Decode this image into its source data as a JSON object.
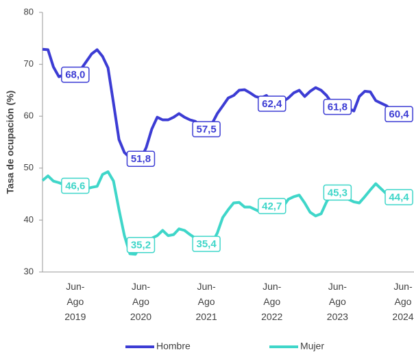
{
  "chart_data": {
    "type": "line",
    "y_label": "Tasa de ocupación (%)",
    "categories": [
      null,
      null,
      null,
      null,
      null,
      null,
      "Jun-\nAgo\n2019",
      null,
      null,
      null,
      null,
      null,
      null,
      null,
      null,
      null,
      null,
      null,
      "Jun-\nAgo\n2020",
      null,
      null,
      null,
      null,
      null,
      null,
      null,
      null,
      null,
      null,
      null,
      "Jun-\nAgo\n2021",
      null,
      null,
      null,
      null,
      null,
      null,
      null,
      null,
      null,
      null,
      null,
      "Jun-\nAgo\n2022",
      null,
      null,
      null,
      null,
      null,
      null,
      null,
      null,
      null,
      null,
      null,
      "Jun-\nAgo\n2023",
      null,
      null,
      null,
      null,
      null,
      null,
      null,
      null,
      null,
      null,
      null,
      "Jun-\nAgo\n2024"
    ],
    "series": [
      {
        "name": "Hombre",
        "color": "#3c3cd4",
        "values": [
          72.9,
          72.8,
          69.5,
          67.6,
          68.0,
          68.0,
          68.0,
          69.0,
          70.5,
          72.0,
          72.8,
          71.5,
          69.3,
          62.5,
          55.5,
          53.0,
          52.0,
          51.8,
          51.8,
          54.0,
          57.5,
          59.8,
          59.3,
          59.3,
          59.8,
          60.5,
          59.8,
          59.3,
          59.0,
          57.8,
          57.5,
          58.5,
          60.5,
          62.0,
          63.5,
          64.0,
          65.0,
          65.1,
          64.5,
          63.8,
          63.5,
          64.0,
          62.4,
          62.4,
          62.8,
          63.5,
          64.5,
          65.0,
          63.8,
          64.8,
          65.5,
          65.0,
          64.0,
          62.5,
          61.8,
          61.8,
          61.5,
          61.0,
          63.8,
          64.8,
          64.7,
          63.0,
          62.5,
          62.0,
          61.0,
          60.5,
          60.4
        ],
        "value_labels": [
          null,
          null,
          null,
          null,
          null,
          null,
          "68,0",
          null,
          null,
          null,
          null,
          null,
          null,
          null,
          null,
          null,
          null,
          null,
          "51,8",
          null,
          null,
          null,
          null,
          null,
          null,
          null,
          null,
          null,
          null,
          null,
          "57,5",
          null,
          null,
          null,
          null,
          null,
          null,
          null,
          null,
          null,
          null,
          null,
          "62,4",
          null,
          null,
          null,
          null,
          null,
          null,
          null,
          null,
          null,
          null,
          null,
          "61,8",
          null,
          null,
          null,
          null,
          null,
          null,
          null,
          null,
          null,
          null,
          null,
          "60,4"
        ]
      },
      {
        "name": "Mujer",
        "color": "#3fd6c9",
        "values": [
          47.6,
          48.5,
          47.5,
          47.2,
          46.8,
          46.6,
          46.6,
          46.0,
          46.0,
          46.3,
          46.5,
          48.8,
          49.3,
          47.5,
          42.0,
          37.0,
          33.5,
          33.4,
          35.2,
          35.5,
          36.5,
          37.0,
          38.0,
          37.0,
          37.2,
          38.3,
          38.0,
          37.2,
          36.5,
          35.8,
          35.4,
          35.5,
          37.5,
          40.5,
          42.0,
          43.3,
          43.4,
          42.5,
          42.5,
          42.0,
          41.5,
          42.0,
          42.7,
          42.7,
          42.5,
          44.0,
          44.5,
          44.8,
          43.3,
          41.5,
          40.8,
          41.2,
          43.5,
          45.0,
          45.3,
          45.0,
          44.0,
          43.5,
          43.3,
          44.5,
          45.8,
          47.0,
          46.0,
          45.0,
          44.5,
          44.4,
          44.4
        ],
        "value_labels": [
          null,
          null,
          null,
          null,
          null,
          null,
          "46,6",
          null,
          null,
          null,
          null,
          null,
          null,
          null,
          null,
          null,
          null,
          null,
          "35,2",
          null,
          null,
          null,
          null,
          null,
          null,
          null,
          null,
          null,
          null,
          null,
          "35,4",
          null,
          null,
          null,
          null,
          null,
          null,
          null,
          null,
          null,
          null,
          null,
          "42,7",
          null,
          null,
          null,
          null,
          null,
          null,
          null,
          null,
          null,
          null,
          null,
          "45,3",
          null,
          null,
          null,
          null,
          null,
          null,
          null,
          null,
          null,
          null,
          null,
          "44,4"
        ]
      }
    ],
    "ylim": [
      30,
      80
    ],
    "yticks": [
      30,
      40,
      50,
      60,
      70,
      80
    ],
    "grid": false,
    "legend": "bottom"
  }
}
